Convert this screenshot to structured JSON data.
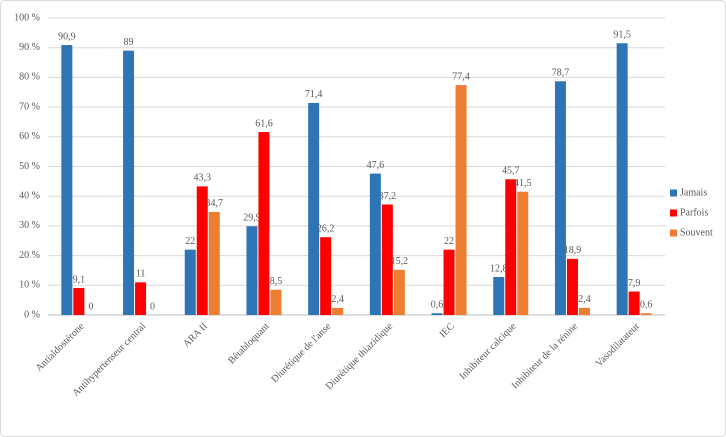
{
  "chart_data": {
    "type": "bar",
    "categories": [
      "Antialdostérone",
      "Antihypertenseur central",
      "ARA II",
      "Bêtabloquant",
      "Diurétique de l'anse",
      "Diurétique thiazidique",
      "IEC",
      "Inhibiteur calcique",
      "Inhibiteur de la rénine",
      "Vasodilatateur"
    ],
    "series": [
      {
        "name": "Jamais",
        "color": "#2e75b6",
        "values": [
          90.9,
          89,
          22,
          29.9,
          71.4,
          47.6,
          0.6,
          12.8,
          78.7,
          91.5
        ],
        "value_labels": [
          "90,9",
          "89",
          "22",
          "29,9",
          "71,4",
          "47,6",
          "0,6",
          "12,8",
          "78,7",
          "91,5"
        ]
      },
      {
        "name": "Parfois",
        "color": "#ff0000",
        "values": [
          9.1,
          11,
          43.3,
          61.6,
          26.2,
          37.2,
          22,
          45.7,
          18.9,
          7.9
        ],
        "value_labels": [
          "9,1",
          "11",
          "43,3",
          "61,6",
          "26,2",
          "37,2",
          "22",
          "45,7",
          "18,9",
          "7,9"
        ]
      },
      {
        "name": "Souvent",
        "color": "#ed7d31",
        "values": [
          0,
          0,
          34.7,
          8.5,
          2.4,
          15.2,
          77.4,
          41.5,
          2.4,
          0.6
        ],
        "value_labels": [
          "0",
          "0",
          "34,7",
          "8,5",
          "2,4",
          "15,2",
          "77,4",
          "41,5",
          "2,4",
          "0,6"
        ]
      }
    ],
    "ylim": [
      0,
      100
    ],
    "yticks": [
      {
        "value": 0,
        "label": "0 %"
      },
      {
        "value": 10,
        "label": "10 %"
      },
      {
        "value": 20,
        "label": "20 %"
      },
      {
        "value": 30,
        "label": "30 %"
      },
      {
        "value": 40,
        "label": "40 %"
      },
      {
        "value": 50,
        "label": "50 %"
      },
      {
        "value": 60,
        "label": "60 %"
      },
      {
        "value": 70,
        "label": "70 %"
      },
      {
        "value": 80,
        "label": "80 %"
      },
      {
        "value": 90,
        "label": "90 %"
      },
      {
        "value": 100,
        "label": "100 %"
      }
    ],
    "grid": true,
    "legend": "right"
  }
}
